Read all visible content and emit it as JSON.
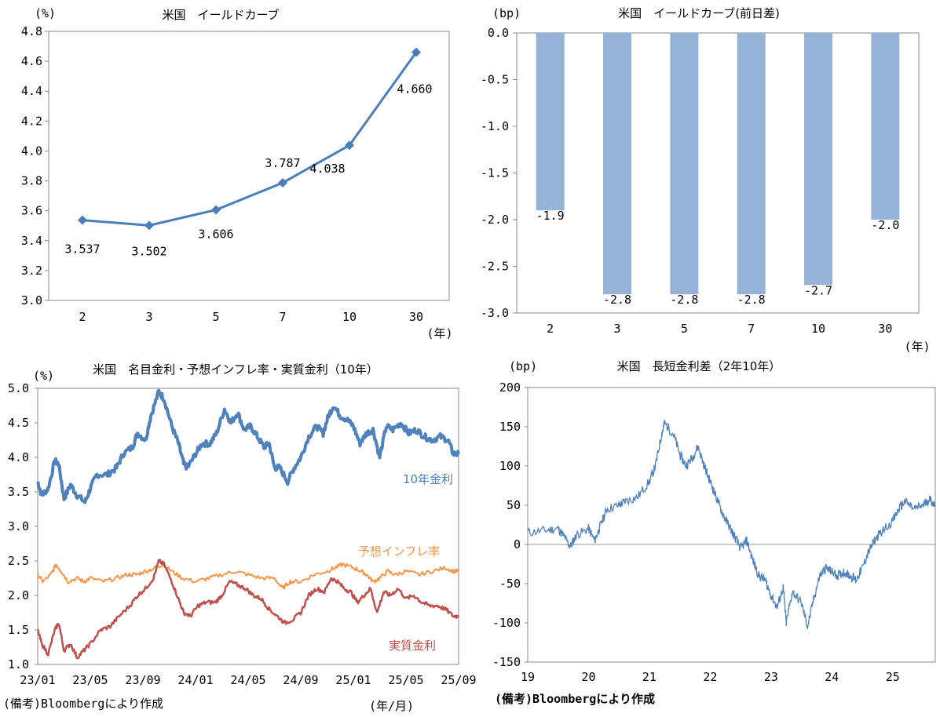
{
  "chart_data": [
    {
      "type": "line",
      "title": "米国　イールドカーブ",
      "unit_label": "(%)",
      "x_unit_label": "(年)",
      "categories": [
        "2",
        "3",
        "5",
        "7",
        "10",
        "30"
      ],
      "values": [
        3.537,
        3.502,
        3.606,
        3.787,
        4.038,
        4.66
      ],
      "data_labels": [
        "3.537",
        "3.502",
        "3.606",
        "3.787",
        "4.038",
        "4.660"
      ],
      "ylim": [
        3.0,
        4.8
      ],
      "yticks": [
        "3.0",
        "3.2",
        "3.4",
        "3.6",
        "3.8",
        "4.0",
        "4.2",
        "4.4",
        "4.6",
        "4.8"
      ],
      "color": "#4A7EBB"
    },
    {
      "type": "bar",
      "title": "米国　イールドカーブ(前日差)",
      "unit_label": "(bp)",
      "x_unit_label": "(年)",
      "categories": [
        "2",
        "3",
        "5",
        "7",
        "10",
        "30"
      ],
      "values": [
        -1.9,
        -2.8,
        -2.8,
        -2.8,
        -2.7,
        -2.0
      ],
      "data_labels": [
        "-1.9",
        "-2.8",
        "-2.8",
        "-2.8",
        "-2.7",
        "-2.0"
      ],
      "ylim": [
        -3.0,
        0.0
      ],
      "yticks": [
        "0.0",
        "-0.5",
        "-1.0",
        "-1.5",
        "-2.0",
        "-2.5",
        "-3.0"
      ],
      "color": "#95B3D7"
    },
    {
      "type": "line",
      "title": "米国　名目金利・予想インフレ率・実質金利（10年）",
      "unit_label": "(%)",
      "x_unit_label": "(年/月)",
      "note": "(備考)Bloombergにより作成",
      "ylim": [
        1.0,
        5.0
      ],
      "yticks": [
        "1.0",
        "1.5",
        "2.0",
        "2.5",
        "3.0",
        "3.5",
        "4.0",
        "4.5",
        "5.0"
      ],
      "xticks": [
        "23/01",
        "23/05",
        "23/09",
        "24/01",
        "24/05",
        "24/09",
        "25/01",
        "25/05",
        "25/09"
      ],
      "x_range_months": [
        0,
        32
      ],
      "series": [
        {
          "name": "10年金利",
          "color": "#4F81BD",
          "points": [
            [
              0,
              3.65
            ],
            [
              0.3,
              3.45
            ],
            [
              0.8,
              3.55
            ],
            [
              1.3,
              3.95
            ],
            [
              1.6,
              3.9
            ],
            [
              2.0,
              3.4
            ],
            [
              2.5,
              3.6
            ],
            [
              3.0,
              3.45
            ],
            [
              3.6,
              3.35
            ],
            [
              4.0,
              3.55
            ],
            [
              4.5,
              3.75
            ],
            [
              5.3,
              3.75
            ],
            [
              6.0,
              3.85
            ],
            [
              6.5,
              4.05
            ],
            [
              7.2,
              4.15
            ],
            [
              7.6,
              4.35
            ],
            [
              8.2,
              4.25
            ],
            [
              8.6,
              4.6
            ],
            [
              9.2,
              4.95
            ],
            [
              9.6,
              4.85
            ],
            [
              10.2,
              4.45
            ],
            [
              10.7,
              4.2
            ],
            [
              11.1,
              3.9
            ],
            [
              11.4,
              3.85
            ],
            [
              12.0,
              4.05
            ],
            [
              12.5,
              4.2
            ],
            [
              13.1,
              4.2
            ],
            [
              13.6,
              4.35
            ],
            [
              14.2,
              4.7
            ],
            [
              14.7,
              4.5
            ],
            [
              15.2,
              4.65
            ],
            [
              15.7,
              4.4
            ],
            [
              16.2,
              4.45
            ],
            [
              16.7,
              4.3
            ],
            [
              17.2,
              4.15
            ],
            [
              17.6,
              4.2
            ],
            [
              18.0,
              3.85
            ],
            [
              18.4,
              3.85
            ],
            [
              19.0,
              3.65
            ],
            [
              19.5,
              3.85
            ],
            [
              20.0,
              4.0
            ],
            [
              20.6,
              4.3
            ],
            [
              21.2,
              4.45
            ],
            [
              21.7,
              4.35
            ],
            [
              22.1,
              4.6
            ],
            [
              22.5,
              4.75
            ],
            [
              23.0,
              4.6
            ],
            [
              23.5,
              4.55
            ],
            [
              24.0,
              4.45
            ],
            [
              24.5,
              4.2
            ],
            [
              25.0,
              4.35
            ],
            [
              25.5,
              4.4
            ],
            [
              26.0,
              4.0
            ],
            [
              26.5,
              4.45
            ],
            [
              27.0,
              4.4
            ],
            [
              27.6,
              4.5
            ],
            [
              28.2,
              4.35
            ],
            [
              28.8,
              4.4
            ],
            [
              29.4,
              4.3
            ],
            [
              30.0,
              4.25
            ],
            [
              30.6,
              4.3
            ],
            [
              31.2,
              4.25
            ],
            [
              31.6,
              4.05
            ],
            [
              32.0,
              4.05
            ]
          ]
        },
        {
          "name": "予想インフレ率",
          "color": "#F79646",
          "points": [
            [
              0,
              2.3
            ],
            [
              0.4,
              2.2
            ],
            [
              1.0,
              2.3
            ],
            [
              1.4,
              2.45
            ],
            [
              1.8,
              2.35
            ],
            [
              2.3,
              2.2
            ],
            [
              3.0,
              2.25
            ],
            [
              3.5,
              2.2
            ],
            [
              4.0,
              2.25
            ],
            [
              5.0,
              2.2
            ],
            [
              6.0,
              2.25
            ],
            [
              6.8,
              2.3
            ],
            [
              7.5,
              2.3
            ],
            [
              8.2,
              2.35
            ],
            [
              9.0,
              2.4
            ],
            [
              9.5,
              2.45
            ],
            [
              10.2,
              2.35
            ],
            [
              11.0,
              2.25
            ],
            [
              12.0,
              2.2
            ],
            [
              13.0,
              2.25
            ],
            [
              14.0,
              2.3
            ],
            [
              15.0,
              2.35
            ],
            [
              16.0,
              2.3
            ],
            [
              17.0,
              2.25
            ],
            [
              18.0,
              2.25
            ],
            [
              18.6,
              2.1
            ],
            [
              19.2,
              2.2
            ],
            [
              20.0,
              2.2
            ],
            [
              21.0,
              2.3
            ],
            [
              22.0,
              2.35
            ],
            [
              22.6,
              2.4
            ],
            [
              23.2,
              2.45
            ],
            [
              24.0,
              2.4
            ],
            [
              24.6,
              2.35
            ],
            [
              25.0,
              2.3
            ],
            [
              25.5,
              2.2
            ],
            [
              26.0,
              2.25
            ],
            [
              26.6,
              2.35
            ],
            [
              27.2,
              2.3
            ],
            [
              28.0,
              2.35
            ],
            [
              29.0,
              2.3
            ],
            [
              30.0,
              2.35
            ],
            [
              31.0,
              2.4
            ],
            [
              31.6,
              2.35
            ],
            [
              32.0,
              2.35
            ]
          ]
        },
        {
          "name": "実質金利",
          "color": "#C0504D",
          "points": [
            [
              0,
              1.5
            ],
            [
              0.3,
              1.3
            ],
            [
              0.8,
              1.15
            ],
            [
              1.3,
              1.5
            ],
            [
              1.6,
              1.6
            ],
            [
              2.0,
              1.2
            ],
            [
              2.5,
              1.3
            ],
            [
              3.0,
              1.1
            ],
            [
              3.5,
              1.2
            ],
            [
              4.0,
              1.3
            ],
            [
              4.8,
              1.5
            ],
            [
              5.5,
              1.55
            ],
            [
              6.2,
              1.7
            ],
            [
              7.0,
              1.85
            ],
            [
              7.6,
              2.0
            ],
            [
              8.2,
              2.1
            ],
            [
              8.8,
              2.25
            ],
            [
              9.2,
              2.5
            ],
            [
              9.6,
              2.45
            ],
            [
              10.2,
              2.2
            ],
            [
              10.7,
              1.95
            ],
            [
              11.1,
              1.75
            ],
            [
              11.6,
              1.7
            ],
            [
              12.2,
              1.85
            ],
            [
              12.8,
              1.9
            ],
            [
              13.5,
              1.9
            ],
            [
              14.0,
              2.0
            ],
            [
              14.6,
              2.2
            ],
            [
              15.2,
              2.15
            ],
            [
              15.8,
              2.1
            ],
            [
              16.4,
              2.0
            ],
            [
              17.0,
              1.95
            ],
            [
              17.6,
              1.8
            ],
            [
              18.2,
              1.7
            ],
            [
              18.8,
              1.6
            ],
            [
              19.4,
              1.65
            ],
            [
              20.0,
              1.75
            ],
            [
              20.6,
              2.0
            ],
            [
              21.2,
              2.1
            ],
            [
              21.8,
              2.05
            ],
            [
              22.3,
              2.25
            ],
            [
              22.8,
              2.2
            ],
            [
              23.3,
              2.1
            ],
            [
              23.8,
              2.05
            ],
            [
              24.3,
              1.9
            ],
            [
              24.8,
              2.0
            ],
            [
              25.3,
              2.1
            ],
            [
              25.8,
              1.75
            ],
            [
              26.3,
              2.05
            ],
            [
              26.8,
              2.0
            ],
            [
              27.4,
              2.1
            ],
            [
              28.0,
              1.95
            ],
            [
              28.6,
              2.0
            ],
            [
              29.2,
              1.9
            ],
            [
              29.8,
              1.85
            ],
            [
              30.4,
              1.85
            ],
            [
              31.0,
              1.8
            ],
            [
              31.6,
              1.7
            ],
            [
              32.0,
              1.7
            ]
          ]
        }
      ]
    },
    {
      "type": "line",
      "title": "米国　長短金利差（2年10年）",
      "unit_label": "(bp)",
      "note": "(備考)Bloombergにより作成",
      "ylim": [
        -150,
        200
      ],
      "yticks": [
        "200",
        "150",
        "100",
        "50",
        "0",
        "-50",
        "-100",
        "-150"
      ],
      "xticks": [
        "19",
        "20",
        "21",
        "22",
        "23",
        "24",
        "25"
      ],
      "x_range_years": [
        2019,
        2025.7
      ],
      "series": [
        {
          "name": "長短金利差",
          "color": "#4F81BD",
          "points": [
            [
              2019.0,
              15
            ],
            [
              2019.3,
              18
            ],
            [
              2019.5,
              20
            ],
            [
              2019.6,
              10
            ],
            [
              2019.7,
              -3
            ],
            [
              2019.8,
              12
            ],
            [
              2020.0,
              20
            ],
            [
              2020.1,
              5
            ],
            [
              2020.2,
              25
            ],
            [
              2020.3,
              45
            ],
            [
              2020.5,
              50
            ],
            [
              2020.6,
              55
            ],
            [
              2020.8,
              60
            ],
            [
              2021.0,
              80
            ],
            [
              2021.1,
              100
            ],
            [
              2021.2,
              140
            ],
            [
              2021.25,
              155
            ],
            [
              2021.4,
              140
            ],
            [
              2021.5,
              115
            ],
            [
              2021.6,
              100
            ],
            [
              2021.7,
              110
            ],
            [
              2021.8,
              125
            ],
            [
              2021.9,
              100
            ],
            [
              2022.0,
              80
            ],
            [
              2022.1,
              60
            ],
            [
              2022.2,
              40
            ],
            [
              2022.3,
              25
            ],
            [
              2022.4,
              10
            ],
            [
              2022.5,
              -5
            ],
            [
              2022.6,
              5
            ],
            [
              2022.7,
              -20
            ],
            [
              2022.8,
              -40
            ],
            [
              2022.9,
              -45
            ],
            [
              2023.0,
              -65
            ],
            [
              2023.1,
              -80
            ],
            [
              2023.2,
              -55
            ],
            [
              2023.25,
              -100
            ],
            [
              2023.35,
              -60
            ],
            [
              2023.5,
              -75
            ],
            [
              2023.6,
              -105
            ],
            [
              2023.7,
              -70
            ],
            [
              2023.8,
              -40
            ],
            [
              2023.9,
              -30
            ],
            [
              2024.0,
              -35
            ],
            [
              2024.1,
              -40
            ],
            [
              2024.2,
              -35
            ],
            [
              2024.3,
              -40
            ],
            [
              2024.4,
              -45
            ],
            [
              2024.5,
              -30
            ],
            [
              2024.6,
              -10
            ],
            [
              2024.7,
              5
            ],
            [
              2024.8,
              15
            ],
            [
              2025.0,
              30
            ],
            [
              2025.1,
              45
            ],
            [
              2025.2,
              55
            ],
            [
              2025.35,
              45
            ],
            [
              2025.5,
              50
            ],
            [
              2025.6,
              58
            ],
            [
              2025.7,
              50
            ]
          ]
        }
      ]
    }
  ]
}
